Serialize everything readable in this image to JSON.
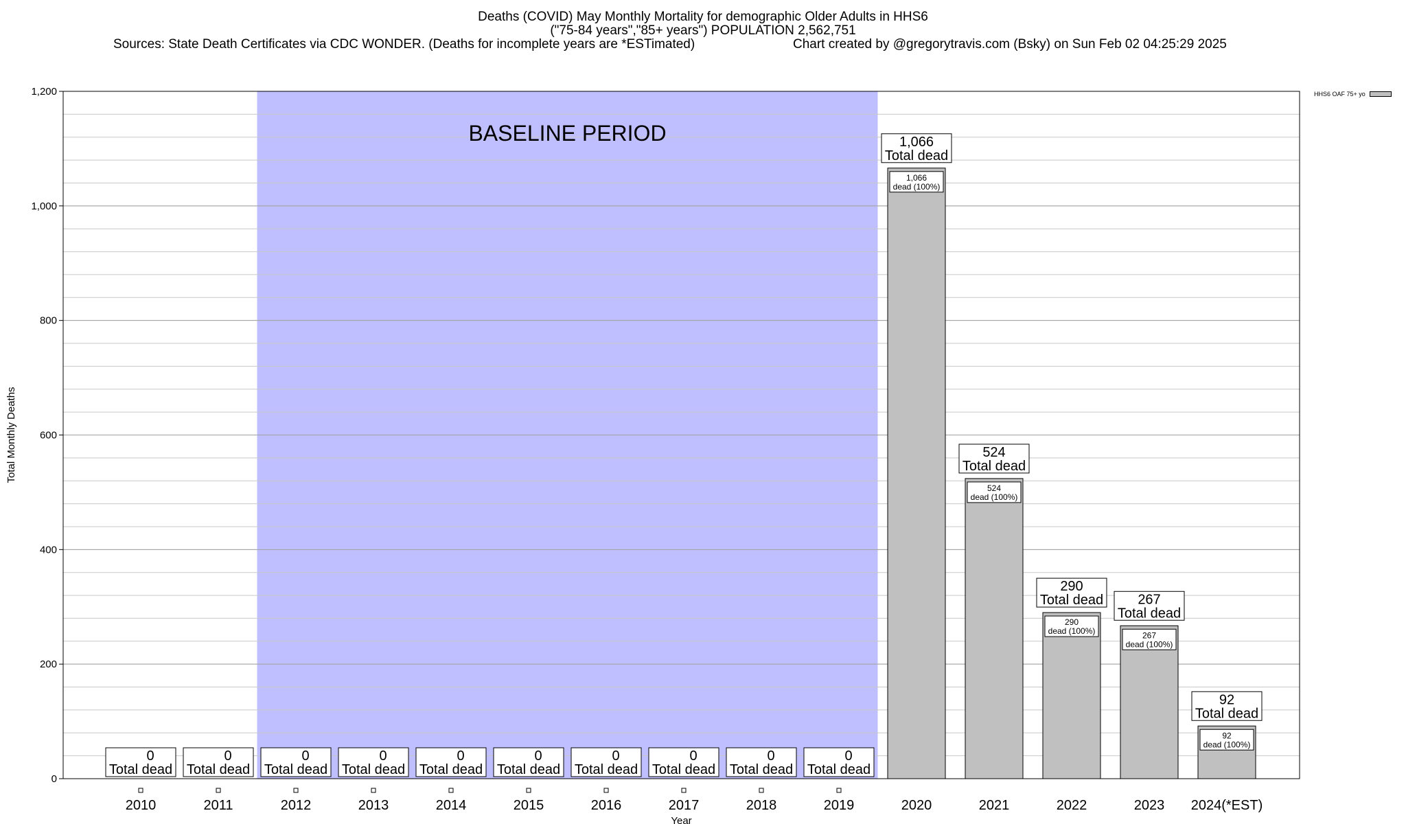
{
  "title": {
    "line1": "Deaths (COVID) May Monthly Mortality for demographic Older Adults in HHS6",
    "line2": "(\"75-84 years\",\"85+ years\") POPULATION 2,562,751",
    "line3_left": "Sources: State Death Certificates via CDC WONDER. (Deaths for incomplete years are *ESTimated)",
    "line3_right": "Chart created by @gregorytravis.com (Bsky) on Sun Feb 02 04:25:29 2025"
  },
  "chart_data": {
    "type": "bar",
    "categories": [
      "2010",
      "2011",
      "2012",
      "2013",
      "2014",
      "2015",
      "2016",
      "2017",
      "2018",
      "2019",
      "2020",
      "2021",
      "2022",
      "2023",
      "2024(*EST)"
    ],
    "series": [
      {
        "name": "HHS6 OAF 75+ yo",
        "values": [
          0,
          0,
          0,
          0,
          0,
          0,
          0,
          0,
          0,
          0,
          1066,
          524,
          290,
          267,
          92
        ]
      }
    ],
    "total_labels": [
      "0",
      "0",
      "0",
      "0",
      "0",
      "0",
      "0",
      "0",
      "0",
      "0",
      "1,066",
      "524",
      "290",
      "267",
      "92"
    ],
    "total_suffix": "Total dead",
    "inner_labels": [
      "",
      "",
      "",
      "",
      "",
      "",
      "",
      "",
      "",
      "",
      "1,066",
      "524",
      "290",
      "267",
      "92"
    ],
    "inner_suffix": "dead (100%)",
    "xlabel": "Year",
    "ylabel": "Total Monthly Deaths",
    "ylim": [
      0,
      1200
    ],
    "yticks": [
      0,
      200,
      400,
      600,
      800,
      1000,
      1200
    ],
    "ytick_labels": [
      "0",
      "200",
      "400",
      "600",
      "800",
      "1,000",
      "1,200"
    ],
    "minor_grid_step": 40,
    "grid": true,
    "baseline_period": {
      "label": "BASELINE PERIOD",
      "from": "2012",
      "to": "2019",
      "color": "#bfbfff"
    },
    "bar_color": "#c0c0c0",
    "legend_position": "top-right"
  }
}
